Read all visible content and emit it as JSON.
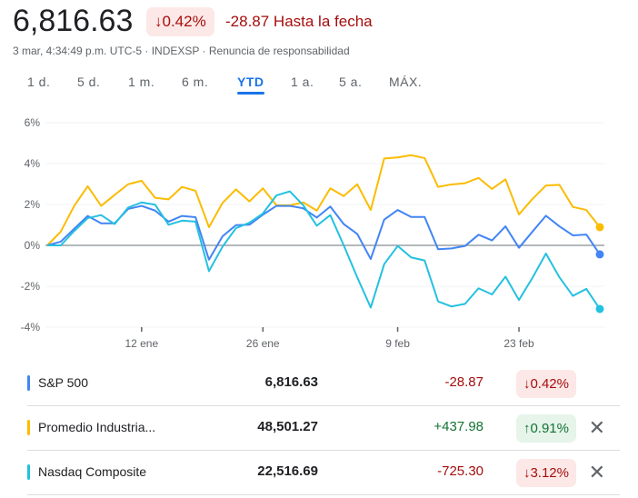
{
  "header": {
    "price": "6,816.63",
    "pct": "↓0.42%",
    "change": "-28.87 Hasta la fecha",
    "meta": "3 mar, 4:34:49 p.m. UTC-5 · INDEXSP · Renuncia de responsabilidad"
  },
  "ranges": [
    "1 d.",
    "5 d.",
    "1 m.",
    "6 m.",
    "YTD",
    "1 a.",
    "5 a.",
    "MÁX."
  ],
  "active_range": "YTD",
  "chart_data": {
    "type": "line",
    "ylim": [
      -4,
      6
    ],
    "yticks": [
      6,
      4,
      2,
      0,
      -2,
      -4
    ],
    "ytick_labels": [
      "6%",
      "4%",
      "2%",
      "0%",
      "-2%",
      "-4%"
    ],
    "xticks": [
      {
        "index": 7,
        "label": "12 ene"
      },
      {
        "index": 16,
        "label": "26 ene"
      },
      {
        "index": 26,
        "label": "9 feb"
      },
      {
        "index": 35,
        "label": "23 feb"
      }
    ],
    "grid": true,
    "baseline": 0,
    "series": [
      {
        "name": "Promedio Industrial",
        "color": "#fbbc04",
        "values": [
          0,
          0.67,
          1.93,
          2.89,
          1.93,
          2.47,
          2.99,
          3.16,
          2.33,
          2.25,
          2.86,
          2.67,
          0.89,
          2.07,
          2.74,
          2.15,
          2.79,
          1.96,
          1.96,
          2.1,
          1.7,
          2.79,
          2.41,
          2.99,
          1.73,
          4.25,
          4.3,
          4.41,
          4.27,
          2.86,
          2.98,
          3.04,
          3.3,
          2.76,
          3.23,
          1.51,
          2.27,
          2.93,
          2.96,
          1.88,
          1.73,
          0.89
        ]
      },
      {
        "name": "S&P 500",
        "color": "#4285f4",
        "values": [
          0,
          0.18,
          0.81,
          1.44,
          1.08,
          1.08,
          1.78,
          1.93,
          1.7,
          1.16,
          1.44,
          1.38,
          -0.7,
          0.44,
          0.99,
          1.01,
          1.5,
          1.93,
          1.93,
          1.81,
          1.36,
          1.9,
          1.04,
          0.56,
          -0.67,
          1.26,
          1.73,
          1.39,
          1.39,
          -0.19,
          -0.15,
          -0.03,
          0.52,
          0.24,
          0.93,
          -0.12,
          0.67,
          1.45,
          0.93,
          0.49,
          0.53,
          -0.44
        ]
      },
      {
        "name": "Nasdaq Composite",
        "color": "#24c1e0",
        "values": [
          0,
          0,
          0.7,
          1.33,
          1.48,
          1.04,
          1.85,
          2.1,
          1.99,
          1.01,
          1.21,
          1.16,
          -1.26,
          -0.07,
          0.84,
          1.11,
          1.56,
          2.44,
          2.64,
          1.96,
          0.96,
          1.48,
          0,
          -1.56,
          -3.04,
          -0.92,
          -0.03,
          -0.59,
          -0.74,
          -2.74,
          -2.99,
          -2.86,
          -2.1,
          -2.4,
          -1.53,
          -2.67,
          -1.59,
          -0.4,
          -1.56,
          -2.47,
          -2.13,
          -3.11
        ]
      }
    ]
  },
  "rows": [
    {
      "name": "S&P 500",
      "value": "6,816.63",
      "change": "-28.87",
      "pct": "↓0.42%",
      "color": "#4285f4",
      "dir": "down",
      "removable": false
    },
    {
      "name": "Promedio Industria...",
      "value": "48,501.27",
      "change": "+437.98",
      "pct": "↑0.91%",
      "color": "#fbbc04",
      "dir": "up",
      "removable": true,
      "remove": "✕"
    },
    {
      "name": "Nasdaq Composite",
      "value": "22,516.69",
      "change": "-725.30",
      "pct": "↓3.12%",
      "color": "#24c1e0",
      "dir": "down",
      "removable": true,
      "remove": "✕"
    }
  ]
}
